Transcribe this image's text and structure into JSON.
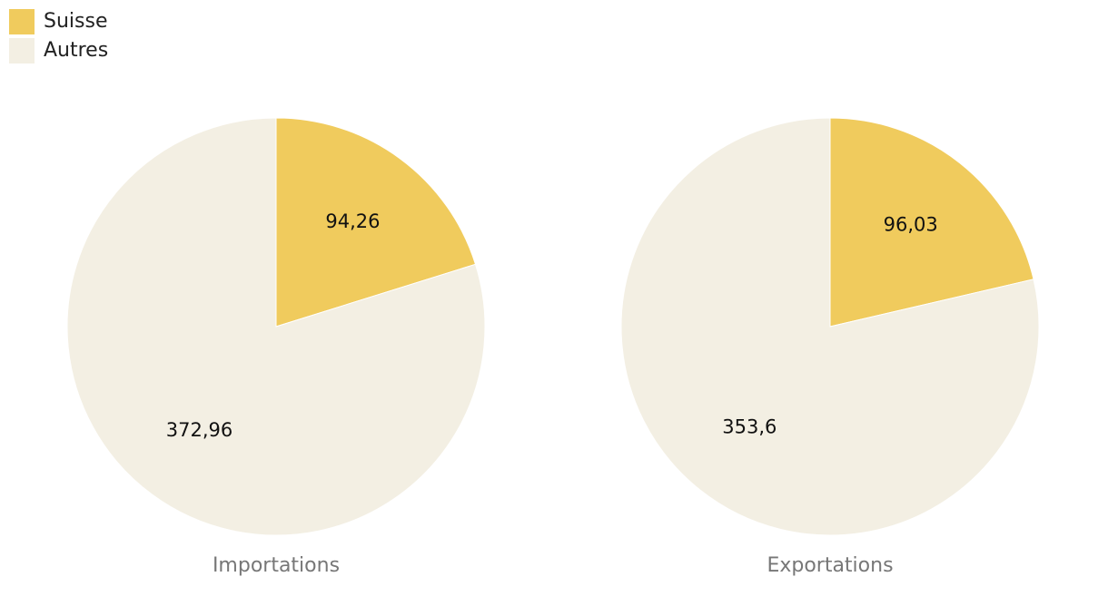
{
  "chart_data": [
    {
      "type": "pie",
      "title": "Importations",
      "categories": [
        "Suisse",
        "Autres"
      ],
      "values": [
        94.26,
        372.96
      ],
      "value_labels": [
        "94,26",
        "372,96"
      ],
      "colors": [
        "#f0cb5d",
        "#f3efe3"
      ]
    },
    {
      "type": "pie",
      "title": "Exportations",
      "categories": [
        "Suisse",
        "Autres"
      ],
      "values": [
        96.03,
        353.6
      ],
      "value_labels": [
        "96,03",
        "353,6"
      ],
      "colors": [
        "#f0cb5d",
        "#f3efe3"
      ]
    }
  ]
}
